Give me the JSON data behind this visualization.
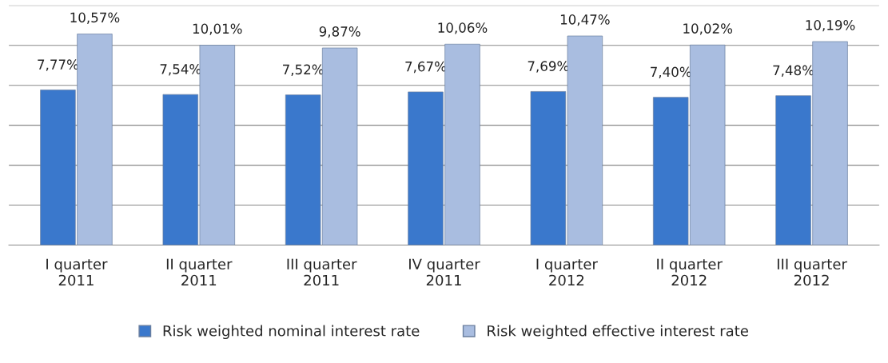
{
  "chart_data": {
    "type": "bar",
    "categories": [
      "I quarter\n2011",
      "II quarter\n2011",
      "III quarter\n2011",
      "IV quarter\n2011",
      "I quarter\n2012",
      "II quarter\n2012",
      "III quarter\n2012"
    ],
    "series": [
      {
        "name": "Risk weighted nominal interest rate",
        "color": "#3a78cc",
        "values": [
          7.77,
          7.54,
          7.52,
          7.67,
          7.69,
          7.4,
          7.48
        ],
        "value_labels": [
          "7,77%",
          "7,54%",
          "7,52%",
          "7,67%",
          "7,69%",
          "7,40%",
          "7,48%"
        ]
      },
      {
        "name": "Risk weighted effective interest rate",
        "color": "#a9bde0",
        "values": [
          10.57,
          10.01,
          9.87,
          10.06,
          10.47,
          10.02,
          10.19
        ],
        "value_labels": [
          "10,57%",
          "10,01%",
          "9,87%",
          "10,06%",
          "10,47%",
          "10,02%",
          "10,19%"
        ]
      }
    ],
    "ylim": [
      0,
      12
    ],
    "yticks": [
      {
        "value": 0,
        "label": null
      },
      {
        "value": 2,
        "label": null
      },
      {
        "value": 4,
        "label": null
      },
      {
        "value": 6,
        "label": null
      },
      {
        "value": 8,
        "label": null
      },
      {
        "value": 10,
        "label": null
      },
      {
        "value": 12,
        "label": null
      }
    ],
    "grid": "y",
    "legend": "bottom",
    "tick_labels": "x"
  }
}
